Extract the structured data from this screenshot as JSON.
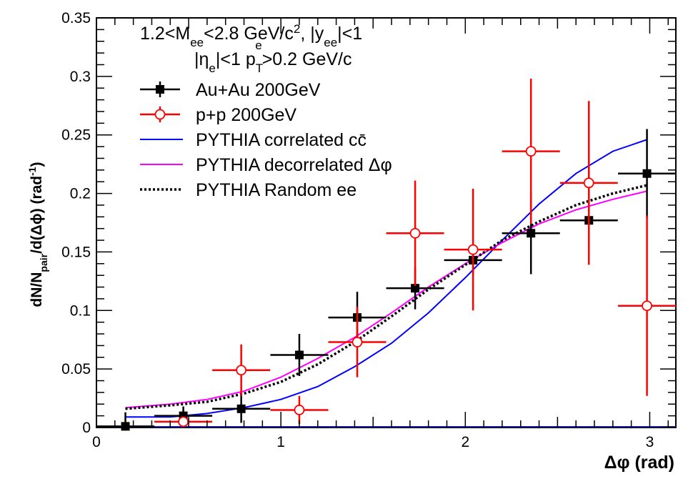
{
  "chart_data": {
    "type": "scatter",
    "title": "",
    "xlabel": "Δφ (rad)",
    "ylabel": "dN/N_pair/d(Δφ) (rad^-1)",
    "xlim": [
      0,
      3.1416
    ],
    "ylim": [
      0,
      0.35
    ],
    "x_ticks": [
      0,
      1,
      2,
      3
    ],
    "x_tick_labels": [
      "0",
      "1",
      "2",
      "3"
    ],
    "y_ticks": [
      0,
      0.05,
      0.1,
      0.15,
      0.2,
      0.25,
      0.3,
      0.35
    ],
    "y_tick_labels": [
      "0",
      "0.05",
      "0.1",
      "0.15",
      "0.2",
      "0.25",
      "0.3",
      "0.35"
    ],
    "grid": false,
    "legend_position": "top-left",
    "annotations": {
      "line1": "1.2<Mee<2.8 GeV/c2, |yee|<1",
      "line2": "|ηe|<1 pTe>0.2 GeV/c"
    },
    "series": [
      {
        "name": "Au+Au 200GeV",
        "kind": "points",
        "marker": "filled-square",
        "color": "#000000",
        "x": [
          0.157,
          0.471,
          0.785,
          1.1,
          1.414,
          1.728,
          2.042,
          2.356,
          2.67,
          2.985
        ],
        "xerr": [
          0.157,
          0.157,
          0.157,
          0.157,
          0.157,
          0.157,
          0.157,
          0.157,
          0.157,
          0.157
        ],
        "y": [
          0.001,
          0.01,
          0.016,
          0.062,
          0.094,
          0.119,
          0.143,
          0.166,
          0.177,
          0.217
        ],
        "yerr": [
          0.012,
          0.008,
          0.012,
          0.018,
          0.022,
          0.018,
          0.012,
          0.035,
          0.025,
          0.038
        ]
      },
      {
        "name": "p+p 200GeV",
        "kind": "points",
        "marker": "open-circle",
        "color": "#ff0000",
        "x": [
          0.471,
          0.785,
          1.1,
          1.414,
          1.728,
          2.042,
          2.356,
          2.67,
          2.985
        ],
        "xerr": [
          0.157,
          0.157,
          0.157,
          0.157,
          0.157,
          0.157,
          0.157,
          0.157,
          0.157
        ],
        "y": [
          0.005,
          0.049,
          0.015,
          0.073,
          0.166,
          0.152,
          0.236,
          0.209,
          0.104
        ],
        "yerr": [
          0.004,
          0.022,
          0.012,
          0.03,
          0.045,
          0.052,
          0.062,
          0.07,
          0.077
        ]
      },
      {
        "name": "PYTHIA correlated cc̄",
        "kind": "line",
        "dash": "solid",
        "color": "#0000ff",
        "x": [
          0.157,
          0.4,
          0.6,
          0.8,
          1.0,
          1.2,
          1.4,
          1.6,
          1.8,
          2.0,
          2.2,
          2.4,
          2.6,
          2.8,
          2.985
        ],
        "y": [
          0.009,
          0.009,
          0.012,
          0.017,
          0.024,
          0.035,
          0.052,
          0.072,
          0.098,
          0.128,
          0.16,
          0.191,
          0.217,
          0.236,
          0.246
        ]
      },
      {
        "name": "PYTHIA decorrelated Δφ",
        "kind": "line",
        "dash": "solid",
        "color": "#ff00ff",
        "x": [
          0.157,
          0.4,
          0.6,
          0.8,
          1.0,
          1.2,
          1.4,
          1.6,
          1.8,
          2.0,
          2.2,
          2.4,
          2.6,
          2.8,
          2.985
        ],
        "y": [
          0.017,
          0.02,
          0.024,
          0.031,
          0.043,
          0.059,
          0.077,
          0.098,
          0.12,
          0.14,
          0.158,
          0.174,
          0.186,
          0.195,
          0.202
        ]
      },
      {
        "name": "PYTHIA Random ee",
        "kind": "line",
        "dash": "dotted",
        "color": "#000000",
        "x": [
          0.157,
          0.4,
          0.6,
          0.8,
          1.0,
          1.2,
          1.4,
          1.6,
          1.8,
          2.0,
          2.2,
          2.4,
          2.6,
          2.8,
          2.985
        ],
        "y": [
          0.016,
          0.019,
          0.022,
          0.029,
          0.039,
          0.054,
          0.073,
          0.095,
          0.118,
          0.139,
          0.16,
          0.176,
          0.19,
          0.2,
          0.207
        ]
      }
    ]
  }
}
